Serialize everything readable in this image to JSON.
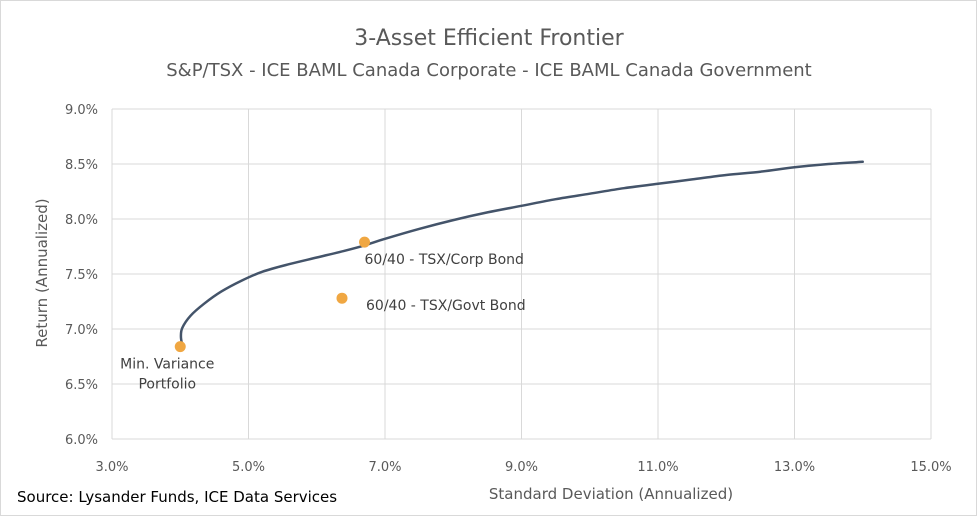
{
  "chart_data": {
    "type": "line",
    "title": "3-Asset Efficient Frontier",
    "subtitle": "S&P/TSX - ICE BAML Canada Corporate - ICE BAML Canada Government",
    "xlabel": "Standard Deviation (Annualized)",
    "ylabel": "Return (Annualized)",
    "xlim": [
      3.0,
      15.0
    ],
    "ylim": [
      6.0,
      9.0
    ],
    "x_ticks": [
      "3.0%",
      "5.0%",
      "7.0%",
      "9.0%",
      "11.0%",
      "13.0%",
      "15.0%"
    ],
    "y_ticks": [
      "6.0%",
      "6.5%",
      "7.0%",
      "7.5%",
      "8.0%",
      "8.5%",
      "9.0%"
    ],
    "grid": true,
    "series": [
      {
        "type": "line",
        "color": "#44546a",
        "x": [
          4.03,
          4.01,
          4.03,
          4.15,
          4.35,
          4.6,
          4.9,
          5.2,
          5.6,
          6.0,
          6.4,
          6.7,
          7.0,
          7.5,
          8.0,
          8.5,
          9.0,
          9.5,
          10.0,
          10.5,
          11.0,
          11.5,
          12.0,
          12.5,
          13.0,
          13.5,
          14.0
        ],
        "y": [
          6.85,
          6.93,
          7.01,
          7.12,
          7.23,
          7.34,
          7.44,
          7.52,
          7.59,
          7.65,
          7.71,
          7.76,
          7.82,
          7.91,
          7.99,
          8.06,
          8.12,
          8.18,
          8.23,
          8.28,
          8.32,
          8.36,
          8.4,
          8.43,
          8.47,
          8.5,
          8.52
        ]
      }
    ],
    "points": [
      {
        "label": "Min. Variance Portfolio",
        "label_lines": [
          "Min. Variance",
          "Portfolio"
        ],
        "x": 4.0,
        "y": 6.84,
        "color": "#f0a742"
      },
      {
        "label": "60/40 - TSX/Corp Bond",
        "label_lines": [
          "60/40 - TSX/Corp Bond"
        ],
        "x": 6.7,
        "y": 7.79,
        "color": "#f0a742"
      },
      {
        "label": "60/40 - TSX/Govt Bond",
        "label_lines": [
          "60/40 - TSX/Govt Bond"
        ],
        "x": 6.37,
        "y": 7.28,
        "color": "#f0a742"
      }
    ]
  },
  "footer": {
    "source": "Source: Lysander Funds, ICE Data Services"
  }
}
